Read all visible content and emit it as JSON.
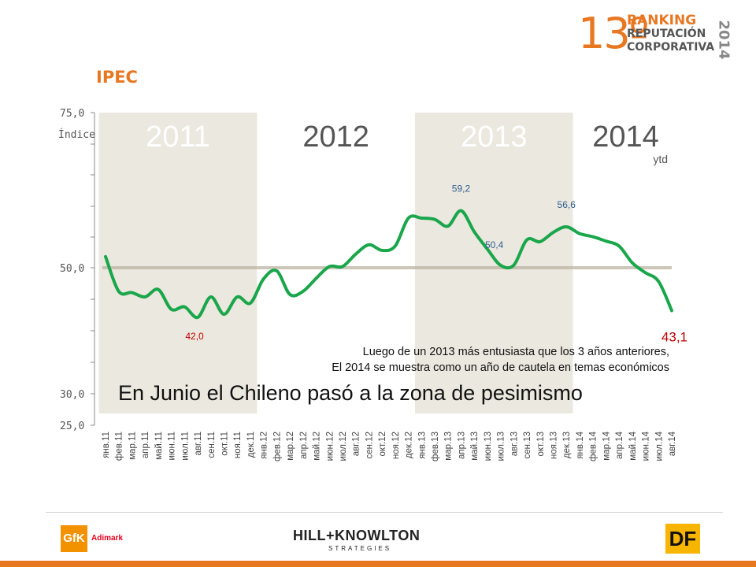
{
  "header": {
    "logo_number": "13º",
    "logo_line1": "RANKING",
    "logo_line2": "REPUTACIÓN",
    "logo_line3": "CORPORATIVA",
    "logo_year": "2014",
    "title": "IPEC"
  },
  "chart_data": {
    "type": "line",
    "ylabel": "Índice",
    "ylim": [
      25,
      75
    ],
    "y_ticks": [
      "75,0",
      "50,0",
      "30,0",
      "25,0"
    ],
    "baseline": 50,
    "categories": [
      "янв.11",
      "фев.11",
      "мар.11",
      "апр.11",
      "май.11",
      "июн.11",
      "июл.11",
      "авг.11",
      "сен.11",
      "окт.11",
      "ноя.11",
      "дек.11",
      "янв.12",
      "фев.12",
      "мар.12",
      "апр.12",
      "май.12",
      "июн.12",
      "июл.12",
      "авг.12",
      "сен.12",
      "окт.12",
      "ноя.12",
      "дек.12",
      "янв.13",
      "фев.13",
      "мар.13",
      "апр.13",
      "май.13",
      "июн.13",
      "июл.13",
      "авг.13",
      "сен.13",
      "окт.13",
      "ноя.13",
      "дек.13",
      "янв.14",
      "фев.14",
      "мар.14",
      "апр.14",
      "май.14",
      "июн.14",
      "июл.14",
      "авг.14"
    ],
    "series": [
      {
        "values": [
          51.8,
          46.2,
          46.0,
          45.3,
          46.5,
          43.3,
          43.7,
          42.0,
          45.3,
          42.5,
          45.3,
          44.3,
          48.2,
          49.5,
          45.7,
          46.2,
          48.3,
          50.2,
          50.2,
          52.2,
          53.7,
          52.8,
          53.5,
          58.0,
          58.0,
          57.8,
          56.7,
          59.2,
          55.8,
          53.0,
          50.4,
          50.4,
          54.5,
          54.2,
          55.7,
          56.6,
          55.5,
          55.0,
          54.3,
          53.5,
          50.8,
          49.2,
          47.8,
          43.1
        ],
        "color": "#1aa64a"
      }
    ],
    "year_bands": [
      {
        "label": "2011",
        "start": 0,
        "end": 11,
        "shaded": true
      },
      {
        "label": "2012",
        "start": 12,
        "end": 23,
        "shaded": false
      },
      {
        "label": "2013",
        "start": 24,
        "end": 35,
        "shaded": true
      },
      {
        "label": "2014",
        "start": 36,
        "end": 43,
        "shaded": false,
        "sublabel": "ytd"
      }
    ],
    "annotations": [
      {
        "text": "42,0",
        "index": 7,
        "value": 42.0,
        "style": "red"
      },
      {
        "text": "59,2",
        "index": 27,
        "value": 59.2,
        "style": "blue"
      },
      {
        "text": "50,4",
        "index": 30,
        "value": 50.4,
        "style": "blue"
      },
      {
        "text": "56,6",
        "index": 35,
        "value": 56.6,
        "style": "blue"
      },
      {
        "text": "43,1",
        "index": 43,
        "value": 43.1,
        "style": "red-big"
      }
    ],
    "band_color": "#ebe8df",
    "baseline_color": "#c0b8a8",
    "grid": false
  },
  "messages": {
    "line1": "Luego de un 2013 más entusiasta que los 3 años anteriores,",
    "line2": "El 2014 se muestra como un año de cautela en temas económicos",
    "headline": "En Junio el Chileno pasó a la zona de pesimismo"
  },
  "footer": {
    "gfk_logo": "GfK",
    "gfk_text": "Adimark",
    "hk_logo": "HILL+KNOWLTON",
    "hk_sub": "STRATEGIES",
    "df_logo": "DF",
    "accent": "#e87722"
  }
}
